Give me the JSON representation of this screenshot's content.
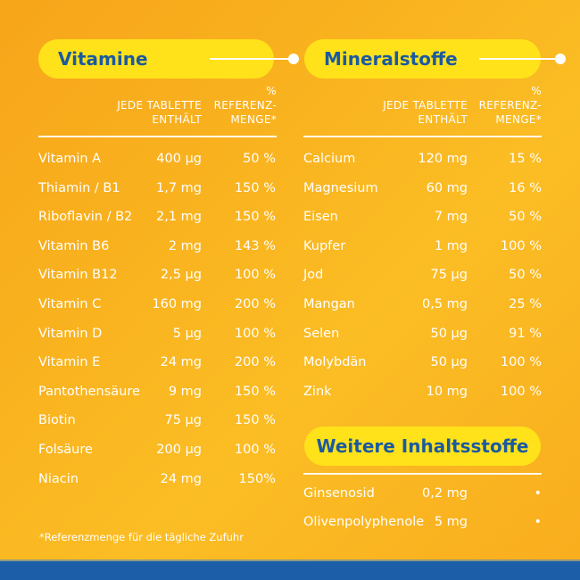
{
  "vitamine": {
    "title": "Vitamine",
    "col_amount": [
      "JEDE TABLETTE",
      "ENTHÄLT"
    ],
    "col_ref": [
      "%",
      "REFERENZ-",
      "MENGE*"
    ],
    "rows": [
      {
        "name": "Vitamin A",
        "amount": "400 µg",
        "ref": "50 %"
      },
      {
        "name": "Thiamin / B1",
        "amount": "1,7 mg",
        "ref": "150 %"
      },
      {
        "name": "Riboflavin / B2",
        "amount": "2,1 mg",
        "ref": "150 %"
      },
      {
        "name": "Vitamin B6",
        "amount": "2 mg",
        "ref": "143 %"
      },
      {
        "name": "Vitamin B12",
        "amount": "2,5 µg",
        "ref": "100 %"
      },
      {
        "name": "Vitamin C",
        "amount": "160 mg",
        "ref": "200 %"
      },
      {
        "name": "Vitamin D",
        "amount": "5 µg",
        "ref": "100 %"
      },
      {
        "name": "Vitamin E",
        "amount": "24 mg",
        "ref": "200 %"
      },
      {
        "name": "Pantothensäure",
        "amount": "9 mg",
        "ref": "150 %"
      },
      {
        "name": "Biotin",
        "amount": "75 µg",
        "ref": "150 %"
      },
      {
        "name": "Folsäure",
        "amount": "200 µg",
        "ref": "100 %"
      },
      {
        "name": "Niacin",
        "amount": "24 mg",
        "ref": "150%"
      }
    ]
  },
  "mineralstoffe": {
    "title": "Mineralstoffe",
    "col_amount": [
      "JEDE TABLETTE",
      "ENTHÄLT"
    ],
    "col_ref": [
      "%",
      "REFERENZ-",
      "MENGE*"
    ],
    "rows": [
      {
        "name": "Calcium",
        "amount": "120 mg",
        "ref": "15 %"
      },
      {
        "name": "Magnesium",
        "amount": "60 mg",
        "ref": "16 %"
      },
      {
        "name": "Eisen",
        "amount": "7 mg",
        "ref": "50 %"
      },
      {
        "name": "Kupfer",
        "amount": "1 mg",
        "ref": "100 %"
      },
      {
        "name": "Jod",
        "amount": "75 µg",
        "ref": "50 %"
      },
      {
        "name": "Mangan",
        "amount": "0,5 mg",
        "ref": "25 %"
      },
      {
        "name": "Selen",
        "amount": "50 µg",
        "ref": "91 %"
      },
      {
        "name": "Molybdän",
        "amount": "50 µg",
        "ref": "100 %"
      },
      {
        "name": "Zink",
        "amount": "10 mg",
        "ref": "100 %"
      }
    ]
  },
  "weitere": {
    "title": "Weitere Inhaltsstoffe",
    "rows": [
      {
        "name": "Ginsenosid",
        "amount": "0,2 mg",
        "ref": "•"
      },
      {
        "name": "Olivenpolyphenole",
        "amount": "5 mg",
        "ref": "•"
      }
    ]
  },
  "footnote": "*Referenzmenge für die tägliche Zufuhr",
  "colors": {
    "background": "#f9b31f",
    "pill": "#ffe21a",
    "pill_text": "#1b5a9f",
    "bottom_stripe": "#1c5fa8",
    "text": "#ffffff"
  }
}
